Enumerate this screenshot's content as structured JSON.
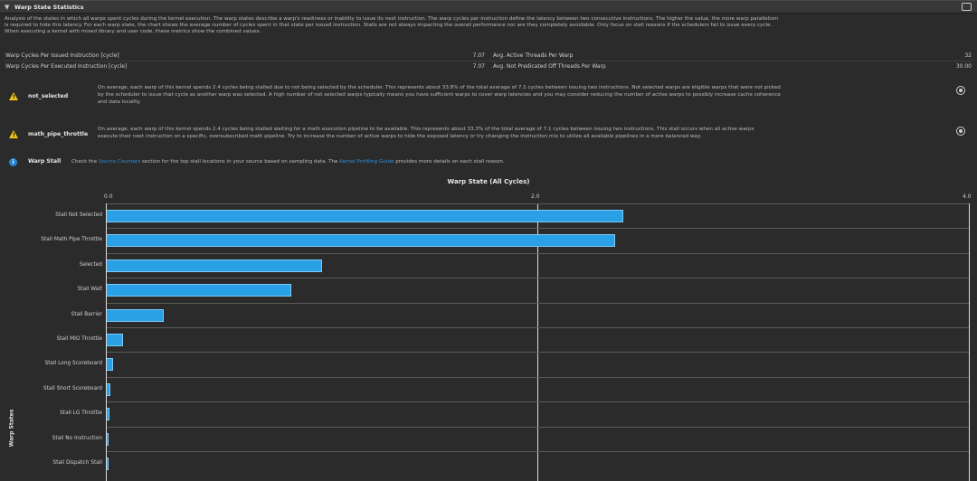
{
  "section": {
    "title": "Warp State Statistics",
    "description_lines": [
      "Analysis of the states in which all warps spent cycles during the kernel execution. The warp states describe a warp's readiness or inability to issue its next instruction. The warp cycles per instruction define the latency between two consecutive instructions. The higher the value, the more warp parallelism",
      "is required to hide this latency. For each warp state, the chart shows the average number of cycles spent in that state per issued instruction. Stalls are not always impacting the overall performance nor are they completely avoidable. Only focus on stall reasons if the schedulers fail to issue every cycle.",
      "When executing a kernel with mixed library and user code, these metrics show the combined values."
    ]
  },
  "metrics": [
    {
      "label": "Warp Cycles Per Issued Instruction [cycle]",
      "value": "7.07",
      "label2": "Avg. Active Threads Per Warp",
      "value2": "32"
    },
    {
      "label": "Warp Cycles Per Executed Instruction [cycle]",
      "value": "7.07",
      "label2": "Avg. Not Predicated Off Threads Per Warp",
      "value2": "30.00"
    }
  ],
  "rules": [
    {
      "name": "not_selected",
      "lines": [
        "On average, each warp of this kernel spends 2.4 cycles being stalled due to not being selected by the scheduler. This represents about 33.8% of the total average of 7.1 cycles between issuing two instructions. Not selected warps are eligible warps that were not picked",
        "by the scheduler to issue that cycle as another warp was selected. A high number of not selected warps typically means you have sufficient warps to cover warp latencies and you may consider reducing the number of active warps to possibly increase cache coherence",
        "and data locality."
      ]
    },
    {
      "name": "math_pipe_throttle",
      "lines": [
        "On average, each warp of this kernel spends 2.4 cycles being stalled waiting for a math execution pipeline to be available. This represents about 33.3% of the total average of 7.1 cycles between issuing two instructions. This stall occurs when all active warps",
        "execute their next instruction on a specific, oversubscribed math pipeline. Try to increase the number of active warps to hide the exposed latency or try changing the instruction mix to utilize all available pipelines in a more balanced way."
      ]
    }
  ],
  "info": {
    "name": "Warp Stall",
    "prefix": "Check the",
    "link1": "Source Counters",
    "middle": "section for the top stall locations in your source based on sampling data. The",
    "link2": "Kernel Profiling Guide",
    "suffix": "provides more details on each stall reason."
  },
  "chart_data": {
    "type": "bar",
    "orientation": "horizontal",
    "title": "Warp State (All Cycles)",
    "ylabel": "Warp States",
    "xlim": [
      0,
      4
    ],
    "xticks": [
      "0.0",
      "2.0",
      "4.0"
    ],
    "categories": [
      "Stall Not Selected",
      "Stall Math Pipe Throttle",
      "Selected",
      "Stall Wait",
      "Stall Barrier",
      "Stall MIO Throttle",
      "Stall Long Scoreboard",
      "Stall Short Scoreboard",
      "Stall LG Throttle",
      "Stall No Instruction",
      "Stall Dispatch Stall"
    ],
    "values": [
      2.4,
      2.36,
      1.0,
      0.86,
      0.27,
      0.08,
      0.035,
      0.02,
      0.016,
      0.012,
      0.01
    ],
    "bar_color": "#2aa0e6"
  }
}
